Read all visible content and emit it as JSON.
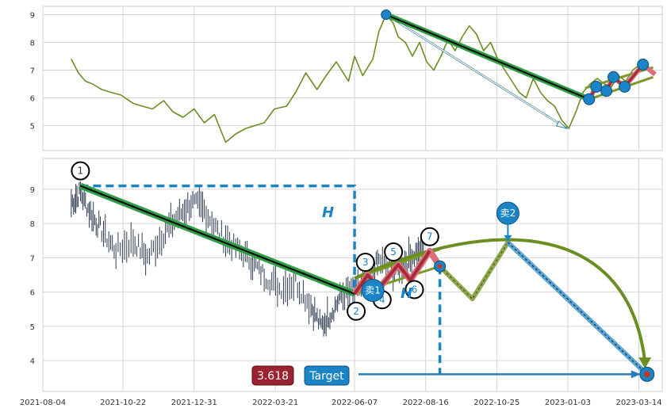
{
  "chart_data": [
    {
      "type": "line",
      "panel": "top",
      "ylim": [
        4.1,
        9.3
      ],
      "yticks": [
        "5",
        "6",
        "7",
        "8",
        "9"
      ],
      "grid": true,
      "series": [
        {
          "color": "#6b8e23",
          "x": [
            "2021-09-01",
            "2021-09-08",
            "2021-09-15",
            "2021-09-22",
            "2021-10-01",
            "2021-10-10",
            "2021-10-20",
            "2021-11-01",
            "2021-11-10",
            "2021-11-20",
            "2021-12-01",
            "2021-12-10",
            "2021-12-20",
            "2021-12-31",
            "2022-01-10",
            "2022-01-20",
            "2022-01-31",
            "2022-02-10",
            "2022-02-20",
            "2022-03-01",
            "2022-03-10",
            "2022-03-20",
            "2022-04-01",
            "2022-04-10",
            "2022-04-20",
            "2022-05-01",
            "2022-05-10",
            "2022-05-20",
            "2022-06-01",
            "2022-06-07",
            "2022-06-15",
            "2022-06-25",
            "2022-07-01",
            "2022-07-08",
            "2022-07-15",
            "2022-07-20",
            "2022-07-27",
            "2022-08-03",
            "2022-08-10",
            "2022-08-17",
            "2022-08-24",
            "2022-08-31",
            "2022-09-07",
            "2022-09-14",
            "2022-09-21",
            "2022-09-28",
            "2022-10-05",
            "2022-10-12",
            "2022-10-19",
            "2022-10-26",
            "2022-11-02",
            "2022-11-09",
            "2022-11-16",
            "2022-11-23",
            "2022-11-30",
            "2022-12-07",
            "2022-12-14",
            "2022-12-21",
            "2022-12-28",
            "2023-01-04",
            "2023-01-11",
            "2023-01-18",
            "2023-01-25",
            "2023-02-01",
            "2023-02-08",
            "2023-02-15",
            "2023-02-22",
            "2023-03-01",
            "2023-03-08",
            "2023-03-15",
            "2023-03-22"
          ],
          "values": [
            7.4,
            6.9,
            6.6,
            6.5,
            6.3,
            6.2,
            6.1,
            5.8,
            5.7,
            5.6,
            5.9,
            5.5,
            5.3,
            5.6,
            5.1,
            5.4,
            4.4,
            4.7,
            4.9,
            5.0,
            5.1,
            5.6,
            5.7,
            6.2,
            6.9,
            6.3,
            6.8,
            7.3,
            6.6,
            7.5,
            6.8,
            7.4,
            8.4,
            9.0,
            8.7,
            8.2,
            8.0,
            7.5,
            8.0,
            7.3,
            7.0,
            7.5,
            8.1,
            7.7,
            8.2,
            8.6,
            8.3,
            7.7,
            8.0,
            7.4,
            7.0,
            6.6,
            6.2,
            6.0,
            6.7,
            6.2,
            5.9,
            5.7,
            5.2,
            4.9,
            5.5,
            6.2,
            6.5,
            6.7,
            6.5,
            6.4,
            6.8,
            6.6,
            7.0,
            7.2,
            7.1
          ]
        }
      ],
      "overlays": {
        "trend_start": [
          "2022-07-08",
          9.0
        ],
        "trend_end": [
          "2023-01-24",
          5.95
        ],
        "arrow_end": [
          "2023-01-02",
          4.9
        ],
        "zigzag": [
          [
            "2023-01-24",
            5.95
          ],
          [
            "2023-01-31",
            6.4
          ],
          [
            "2023-02-10",
            6.25
          ],
          [
            "2023-02-17",
            6.75
          ],
          [
            "2023-02-28",
            6.4
          ],
          [
            "2023-03-18",
            7.2
          ],
          [
            "2023-03-30",
            6.85
          ]
        ],
        "green_lines": [
          [
            [
              "2023-01-20",
              6.35
            ],
            [
              "2023-03-28",
              7.1
            ]
          ],
          [
            [
              "2023-01-24",
              5.95
            ],
            [
              "2023-03-28",
              6.75
            ]
          ]
        ]
      }
    },
    {
      "type": "line",
      "panel": "bottom",
      "xlim": [
        "2021-08-04",
        "2023-04-06"
      ],
      "xticks": [
        "2021-08-04",
        "2021-10-22",
        "2021-12-31",
        "2022-03-21",
        "2022-06-07",
        "2022-08-16",
        "2022-10-25",
        "2023-01-03",
        "2023-03-14"
      ],
      "ylim": [
        3.1,
        9.9
      ],
      "yticks": [
        "4",
        "5",
        "6",
        "7",
        "8",
        "9"
      ],
      "grid": true,
      "price_color": "#2e3a52",
      "price_path": [
        [
          "2021-09-01",
          8.6
        ],
        [
          "2021-09-10",
          8.9
        ],
        [
          "2021-09-20",
          8.3
        ],
        [
          "2021-10-01",
          7.8
        ],
        [
          "2021-10-15",
          7.2
        ],
        [
          "2021-11-01",
          7.5
        ],
        [
          "2021-11-15",
          7.0
        ],
        [
          "2021-12-01",
          7.7
        ],
        [
          "2021-12-15",
          8.2
        ],
        [
          "2021-12-28",
          8.6
        ],
        [
          "2022-01-10",
          8.4
        ],
        [
          "2022-01-25",
          7.7
        ],
        [
          "2022-02-10",
          7.3
        ],
        [
          "2022-02-25",
          6.9
        ],
        [
          "2022-03-10",
          6.5
        ],
        [
          "2022-03-25",
          6.1
        ],
        [
          "2022-04-10",
          6.3
        ],
        [
          "2022-04-25",
          5.6
        ],
        [
          "2022-05-05",
          5.0
        ],
        [
          "2022-05-15",
          5.4
        ],
        [
          "2022-05-25",
          5.9
        ],
        [
          "2022-06-07",
          6.0
        ],
        [
          "2022-06-20",
          6.4
        ],
        [
          "2022-07-01",
          6.9
        ],
        [
          "2022-07-15",
          6.6
        ],
        [
          "2022-07-25",
          6.8
        ],
        [
          "2022-08-05",
          7.1
        ],
        [
          "2022-08-15",
          7.2
        ]
      ],
      "pattern_points": [
        {
          "label": "1",
          "x": "2021-09-10",
          "y": 9.1
        },
        {
          "label": "2",
          "x": "2022-06-07",
          "y": 5.95
        },
        {
          "label": "3",
          "x": "2022-06-20",
          "y": 6.5
        },
        {
          "label": "4",
          "x": "2022-07-01",
          "y": 6.1
        },
        {
          "label": "5",
          "x": "2022-07-20",
          "y": 6.8
        },
        {
          "label": "6",
          "x": "2022-08-01",
          "y": 6.35
        },
        {
          "label": "7",
          "x": "2022-08-20",
          "y": 7.2
        }
      ],
      "projection": [
        [
          "2022-08-30",
          6.75
        ],
        [
          "2022-10-01",
          5.8
        ],
        [
          "2022-11-05",
          7.45
        ],
        [
          "2023-03-22",
          3.6
        ]
      ],
      "arc_end": [
        "2023-03-20",
        3.95
      ],
      "h_top_y": 9.1,
      "h_x": "2022-06-07",
      "h2_x": "2022-08-30",
      "target_y": 3.6,
      "green_channel": [
        [
          [
            "2022-06-07",
            6.4
          ],
          [
            "2022-08-30",
            7.25
          ]
        ],
        [
          [
            "2022-06-07",
            5.95
          ],
          [
            "2022-08-30",
            6.75
          ]
        ]
      ],
      "signals": [
        {
          "label": "卖1",
          "x": "2022-06-25",
          "y": 6.05
        },
        {
          "label": "卖2",
          "x": "2022-11-05",
          "y": 8.3
        }
      ],
      "annotations": {
        "h_label": "H",
        "h2_label": "H",
        "fib_value": "3.618",
        "target_label": "Target"
      }
    }
  ],
  "colors": {
    "trend_green": "#2f9e44",
    "trend_black": "#000000",
    "zigzag_red": "#a52a3a",
    "pink": "#d9707a",
    "olive": "#6b8e23",
    "blue": "#1a84c7",
    "light_blue": "#5aa6d6",
    "grid": "#d5d5d5"
  }
}
